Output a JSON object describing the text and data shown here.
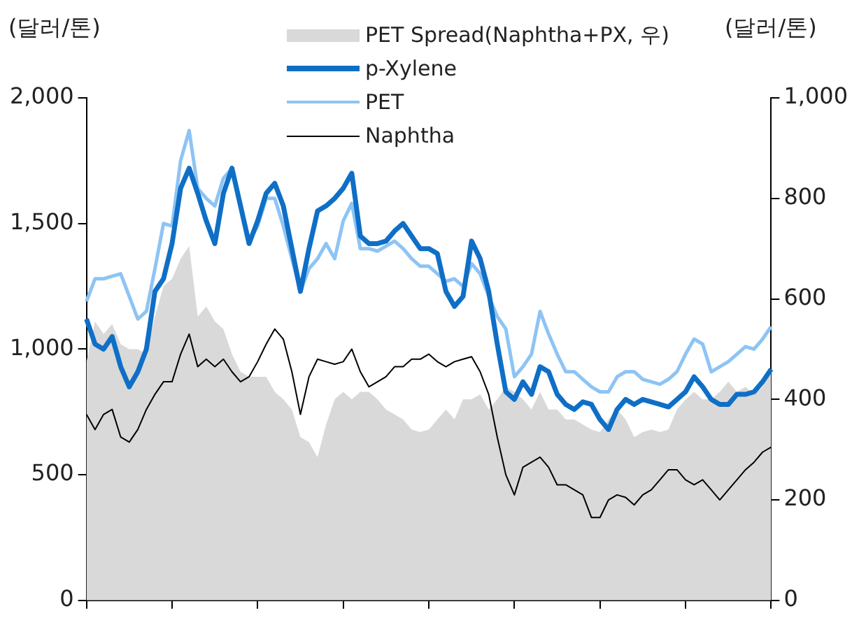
{
  "chart_data": {
    "type": "line",
    "ylabel": "(달러/톤)",
    "y2label": "(달러/톤)",
    "categories": [
      null,
      null,
      null,
      null,
      null,
      null,
      null,
      null,
      null,
      null,
      null,
      null,
      null,
      null,
      null,
      null,
      null,
      null,
      null,
      null,
      null,
      null,
      null,
      null,
      null,
      null,
      null,
      null,
      null,
      null,
      null,
      null,
      null,
      null,
      null,
      null,
      null,
      null,
      null,
      null,
      null,
      null,
      null,
      null,
      null,
      null,
      null,
      null,
      null,
      null,
      null,
      null,
      null,
      null,
      null,
      null,
      null,
      null,
      null,
      null,
      null,
      null,
      null,
      null,
      null,
      null,
      null,
      null,
      null,
      null,
      null,
      null,
      null,
      null,
      null,
      null,
      null,
      null,
      null,
      null,
      null
    ],
    "ylim": [
      0,
      2000
    ],
    "yticks": [
      {
        "value": 0,
        "label": "0"
      },
      {
        "value": 500,
        "label": "500"
      },
      {
        "value": 1000,
        "label": "1,000"
      },
      {
        "value": 1500,
        "label": "1,500"
      },
      {
        "value": 2000,
        "label": "2,000"
      }
    ],
    "y2lim": [
      0,
      1000
    ],
    "y2ticks": [
      {
        "value": 0,
        "label": "0"
      },
      {
        "value": 200,
        "label": "200"
      },
      {
        "value": 400,
        "label": "400"
      },
      {
        "value": 600,
        "label": "600"
      },
      {
        "value": 800,
        "label": "800"
      },
      {
        "value": 1000,
        "label": "1,000"
      }
    ],
    "grid": false,
    "legend": "top right",
    "tick_labels": "y",
    "series": [
      {
        "name": "PET Spread(Naphtha+PX, 우)",
        "type": "area",
        "axis": "y2",
        "color": "#d9d9d9",
        "values": [
          475,
          555,
          530,
          550,
          510,
          500,
          500,
          490,
          565,
          625,
          640,
          680,
          705,
          565,
          585,
          555,
          540,
          490,
          455,
          445,
          445,
          445,
          415,
          400,
          380,
          325,
          315,
          285,
          350,
          400,
          415,
          400,
          415,
          415,
          400,
          380,
          370,
          360,
          340,
          335,
          340,
          360,
          380,
          360,
          400,
          400,
          410,
          380,
          400,
          425,
          415,
          400,
          380,
          415,
          380,
          380,
          360,
          360,
          350,
          340,
          335,
          360,
          380,
          360,
          325,
          335,
          340,
          335,
          340,
          380,
          400,
          415,
          400,
          400,
          415,
          435,
          415,
          425,
          410,
          425,
          455
        ]
      },
      {
        "name": "p-Xylene",
        "type": "line",
        "color": "#0f6fc6",
        "values": [
          1120,
          1020,
          1000,
          1050,
          930,
          850,
          910,
          1000,
          1230,
          1280,
          1420,
          1640,
          1720,
          1620,
          1510,
          1420,
          1620,
          1720,
          1570,
          1420,
          1510,
          1620,
          1660,
          1570,
          1400,
          1230,
          1400,
          1550,
          1570,
          1600,
          1640,
          1700,
          1450,
          1420,
          1420,
          1430,
          1470,
          1500,
          1450,
          1400,
          1400,
          1380,
          1230,
          1170,
          1210,
          1430,
          1360,
          1230,
          1020,
          830,
          800,
          870,
          820,
          930,
          910,
          820,
          780,
          760,
          790,
          780,
          720,
          680,
          760,
          800,
          780,
          800,
          790,
          780,
          770,
          800,
          830,
          890,
          850,
          800,
          780,
          780,
          820,
          820,
          830,
          870,
          920
        ]
      },
      {
        "name": "PET",
        "type": "line",
        "color": "#8ec4f4",
        "values": [
          1190,
          1280,
          1280,
          1290,
          1300,
          1210,
          1120,
          1150,
          1320,
          1500,
          1490,
          1750,
          1870,
          1640,
          1600,
          1570,
          1680,
          1720,
          1580,
          1430,
          1490,
          1600,
          1600,
          1490,
          1360,
          1230,
          1320,
          1360,
          1420,
          1360,
          1510,
          1580,
          1400,
          1400,
          1390,
          1410,
          1430,
          1400,
          1360,
          1330,
          1330,
          1300,
          1270,
          1280,
          1250,
          1340,
          1300,
          1210,
          1130,
          1080,
          890,
          930,
          980,
          1150,
          1060,
          980,
          910,
          910,
          880,
          850,
          830,
          830,
          890,
          910,
          910,
          880,
          870,
          860,
          880,
          910,
          980,
          1040,
          1020,
          910,
          930,
          950,
          980,
          1010,
          1000,
          1040,
          1090
        ]
      },
      {
        "name": "Naphtha",
        "type": "line",
        "color": "#000000",
        "values": [
          740,
          680,
          740,
          760,
          650,
          630,
          680,
          760,
          820,
          870,
          870,
          980,
          1060,
          930,
          960,
          930,
          960,
          910,
          870,
          890,
          950,
          1020,
          1080,
          1040,
          910,
          740,
          890,
          960,
          950,
          940,
          950,
          1000,
          910,
          850,
          870,
          890,
          930,
          930,
          960,
          960,
          980,
          950,
          930,
          950,
          960,
          970,
          910,
          820,
          650,
          500,
          420,
          530,
          550,
          570,
          530,
          460,
          460,
          440,
          420,
          330,
          330,
          400,
          420,
          410,
          380,
          420,
          440,
          480,
          520,
          520,
          480,
          460,
          480,
          440,
          400,
          440,
          480,
          520,
          550,
          590,
          610
        ]
      }
    ]
  }
}
